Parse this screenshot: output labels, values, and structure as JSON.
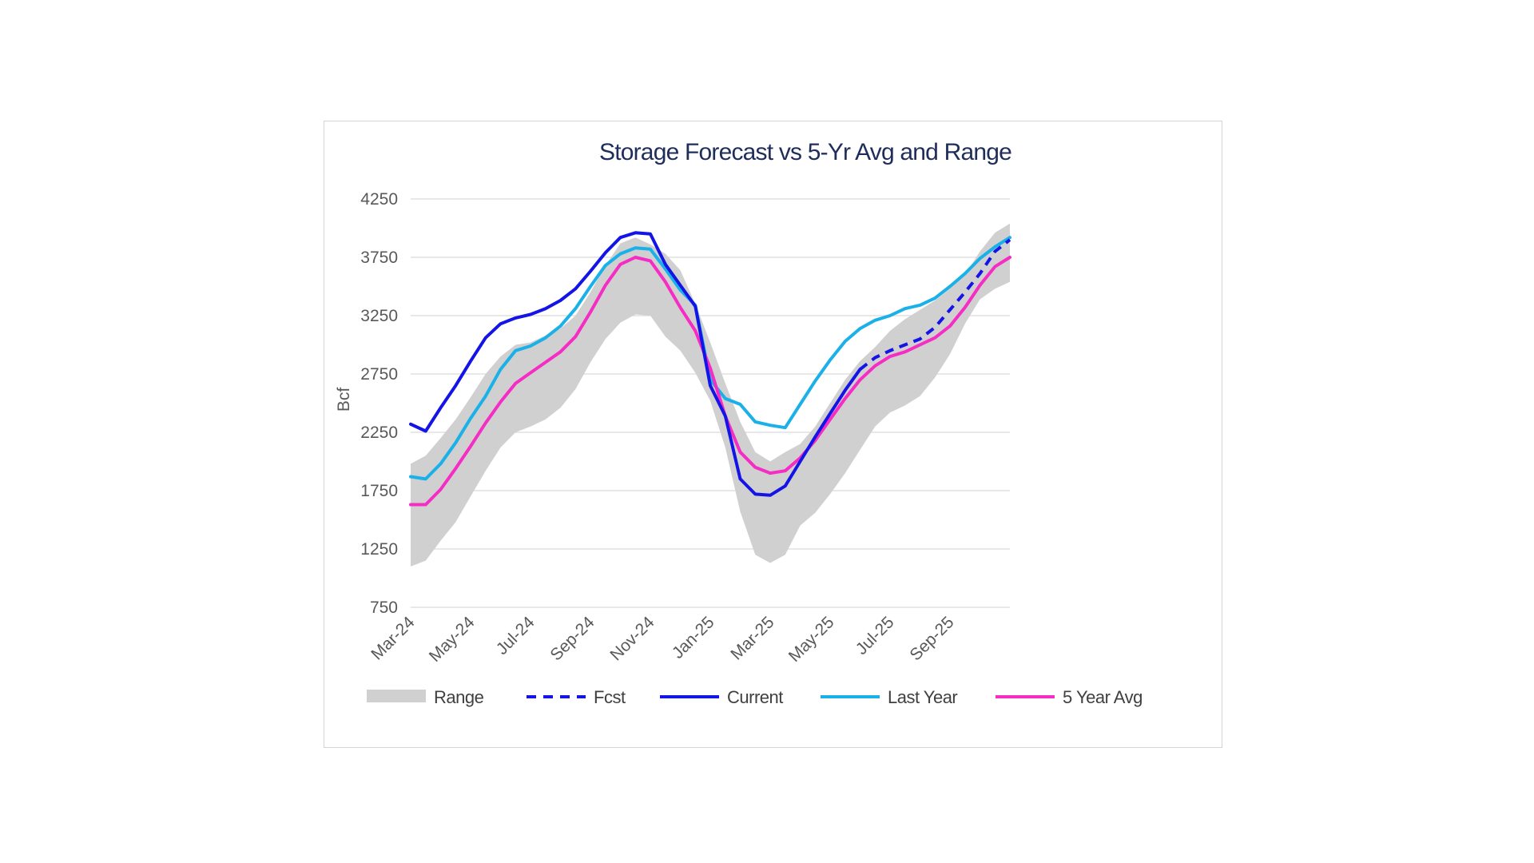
{
  "chart_data": {
    "type": "line",
    "title": "Storage Forecast vs 5-Yr Avg and Range",
    "ylabel": "Bcf",
    "xlabel": "",
    "ylim": [
      750,
      4250
    ],
    "yticks": [
      4250,
      3750,
      3250,
      2750,
      2250,
      1750,
      1250,
      750
    ],
    "xlim": [
      0,
      20
    ],
    "xticks": [
      {
        "pos": 0,
        "label": "Mar-24"
      },
      {
        "pos": 2,
        "label": "May-24"
      },
      {
        "pos": 4,
        "label": "Jul-24"
      },
      {
        "pos": 6,
        "label": "Sep-24"
      },
      {
        "pos": 8,
        "label": "Nov-24"
      },
      {
        "pos": 10,
        "label": "Jan-25"
      },
      {
        "pos": 12,
        "label": "Mar-25"
      },
      {
        "pos": 14,
        "label": "May-25"
      },
      {
        "pos": 16,
        "label": "Jul-25"
      },
      {
        "pos": 18,
        "label": "Sep-25"
      }
    ],
    "grid": true,
    "legend_position": "bottom",
    "x_unit": "months since Mar-24",
    "range": {
      "name": "Range",
      "color": "#d0d0d0",
      "upper": [
        [
          0,
          1980
        ],
        [
          0.5,
          2050
        ],
        [
          1,
          2200
        ],
        [
          1.5,
          2360
        ],
        [
          2,
          2550
        ],
        [
          2.5,
          2750
        ],
        [
          3,
          2900
        ],
        [
          3.5,
          3000
        ],
        [
          4,
          3020
        ],
        [
          4.5,
          3080
        ],
        [
          5,
          3140
        ],
        [
          5.5,
          3250
        ],
        [
          6,
          3450
        ],
        [
          6.5,
          3680
        ],
        [
          7,
          3870
        ],
        [
          7.5,
          3920
        ],
        [
          8,
          3860
        ],
        [
          8.5,
          3780
        ],
        [
          9,
          3640
        ],
        [
          9.5,
          3350
        ],
        [
          10,
          3020
        ],
        [
          10.5,
          2670
        ],
        [
          11,
          2340
        ],
        [
          11.5,
          2080
        ],
        [
          12,
          2000
        ],
        [
          12.5,
          2080
        ],
        [
          13,
          2150
        ],
        [
          13.5,
          2300
        ],
        [
          14,
          2500
        ],
        [
          14.5,
          2700
        ],
        [
          15,
          2860
        ],
        [
          15.5,
          2980
        ],
        [
          16,
          3120
        ],
        [
          16.5,
          3220
        ],
        [
          17,
          3300
        ],
        [
          17.5,
          3380
        ],
        [
          18,
          3480
        ],
        [
          18.5,
          3600
        ],
        [
          19,
          3800
        ],
        [
          19.5,
          3960
        ],
        [
          20,
          4040
        ]
      ],
      "lower": [
        [
          0,
          1100
        ],
        [
          0.5,
          1150
        ],
        [
          1,
          1320
        ],
        [
          1.5,
          1480
        ],
        [
          2,
          1700
        ],
        [
          2.5,
          1920
        ],
        [
          3,
          2120
        ],
        [
          3.5,
          2250
        ],
        [
          4,
          2300
        ],
        [
          4.5,
          2360
        ],
        [
          5,
          2460
        ],
        [
          5.5,
          2620
        ],
        [
          6,
          2850
        ],
        [
          6.5,
          3050
        ],
        [
          7,
          3190
        ],
        [
          7.5,
          3260
        ],
        [
          8,
          3250
        ],
        [
          8.5,
          3070
        ],
        [
          9,
          2950
        ],
        [
          9.5,
          2760
        ],
        [
          10,
          2520
        ],
        [
          10.5,
          2120
        ],
        [
          11,
          1570
        ],
        [
          11.5,
          1200
        ],
        [
          12,
          1130
        ],
        [
          12.5,
          1200
        ],
        [
          13,
          1450
        ],
        [
          13.5,
          1560
        ],
        [
          14,
          1720
        ],
        [
          14.5,
          1900
        ],
        [
          15,
          2100
        ],
        [
          15.5,
          2300
        ],
        [
          16,
          2420
        ],
        [
          16.5,
          2480
        ],
        [
          17,
          2560
        ],
        [
          17.5,
          2720
        ],
        [
          18,
          2920
        ],
        [
          18.5,
          3180
        ],
        [
          19,
          3390
        ],
        [
          19.5,
          3480
        ],
        [
          20,
          3540
        ]
      ]
    },
    "series": [
      {
        "name": "Last Year",
        "color": "#1ab0e8",
        "dash": false,
        "x": [
          0,
          0.5,
          1,
          1.5,
          2,
          2.5,
          3,
          3.5,
          4,
          4.5,
          5,
          5.5,
          6,
          6.5,
          7,
          7.5,
          8,
          8.5,
          9,
          9.5,
          10,
          10.5,
          11,
          11.5,
          12,
          12.5,
          13,
          13.5,
          14,
          14.5,
          15,
          15.5,
          16,
          16.5,
          17,
          17.5,
          18,
          18.5,
          19,
          19.5,
          20
        ],
        "values": [
          1870,
          1850,
          1980,
          2160,
          2370,
          2560,
          2790,
          2950,
          2990,
          3060,
          3160,
          3310,
          3500,
          3680,
          3780,
          3830,
          3820,
          3650,
          3470,
          3340,
          2700,
          2540,
          2490,
          2340,
          2310,
          2290,
          2490,
          2690,
          2870,
          3030,
          3140,
          3210,
          3250,
          3310,
          3340,
          3400,
          3500,
          3610,
          3740,
          3840,
          3920
        ]
      },
      {
        "name": "5 Year Avg",
        "color": "#f52dc4",
        "dash": false,
        "x": [
          0,
          0.5,
          1,
          1.5,
          2,
          2.5,
          3,
          3.5,
          4,
          4.5,
          5,
          5.5,
          6,
          6.5,
          7,
          7.5,
          8,
          8.5,
          9,
          9.5,
          10,
          10.5,
          11,
          11.5,
          12,
          12.5,
          13,
          13.5,
          14,
          14.5,
          15,
          15.5,
          16,
          16.5,
          17,
          17.5,
          18,
          18.5,
          19,
          19.5,
          20
        ],
        "values": [
          1630,
          1630,
          1760,
          1940,
          2130,
          2330,
          2510,
          2670,
          2760,
          2850,
          2940,
          3070,
          3280,
          3510,
          3690,
          3750,
          3720,
          3540,
          3320,
          3120,
          2800,
          2390,
          2080,
          1950,
          1900,
          1920,
          2030,
          2180,
          2360,
          2540,
          2700,
          2820,
          2900,
          2940,
          3000,
          3060,
          3160,
          3320,
          3510,
          3670,
          3750
        ]
      },
      {
        "name": "Current",
        "color": "#1414e6",
        "dash": false,
        "x": [
          0,
          0.5,
          1,
          1.5,
          2,
          2.5,
          3,
          3.5,
          4,
          4.5,
          5,
          5.5,
          6,
          6.5,
          7,
          7.5,
          8,
          8.5,
          9,
          9.5,
          10,
          10.5,
          11,
          11.5,
          12,
          12.5,
          13,
          13.5,
          14,
          14.5,
          15
        ],
        "values": [
          2320,
          2260,
          2460,
          2650,
          2860,
          3060,
          3180,
          3230,
          3260,
          3310,
          3380,
          3480,
          3630,
          3790,
          3920,
          3960,
          3950,
          3690,
          3510,
          3330,
          2650,
          2390,
          1850,
          1720,
          1710,
          1790,
          2000,
          2210,
          2410,
          2610,
          2790
        ]
      },
      {
        "name": "Fcst",
        "color": "#1414e6",
        "dash": true,
        "x": [
          15,
          15.5,
          16,
          16.5,
          17,
          17.5,
          18,
          18.5,
          19,
          19.5,
          20
        ],
        "values": [
          2790,
          2890,
          2950,
          3000,
          3050,
          3150,
          3300,
          3450,
          3610,
          3800,
          3900
        ]
      }
    ],
    "legend": [
      "Range",
      "Fcst",
      "Current",
      "Last Year",
      "5 Year Avg"
    ]
  }
}
